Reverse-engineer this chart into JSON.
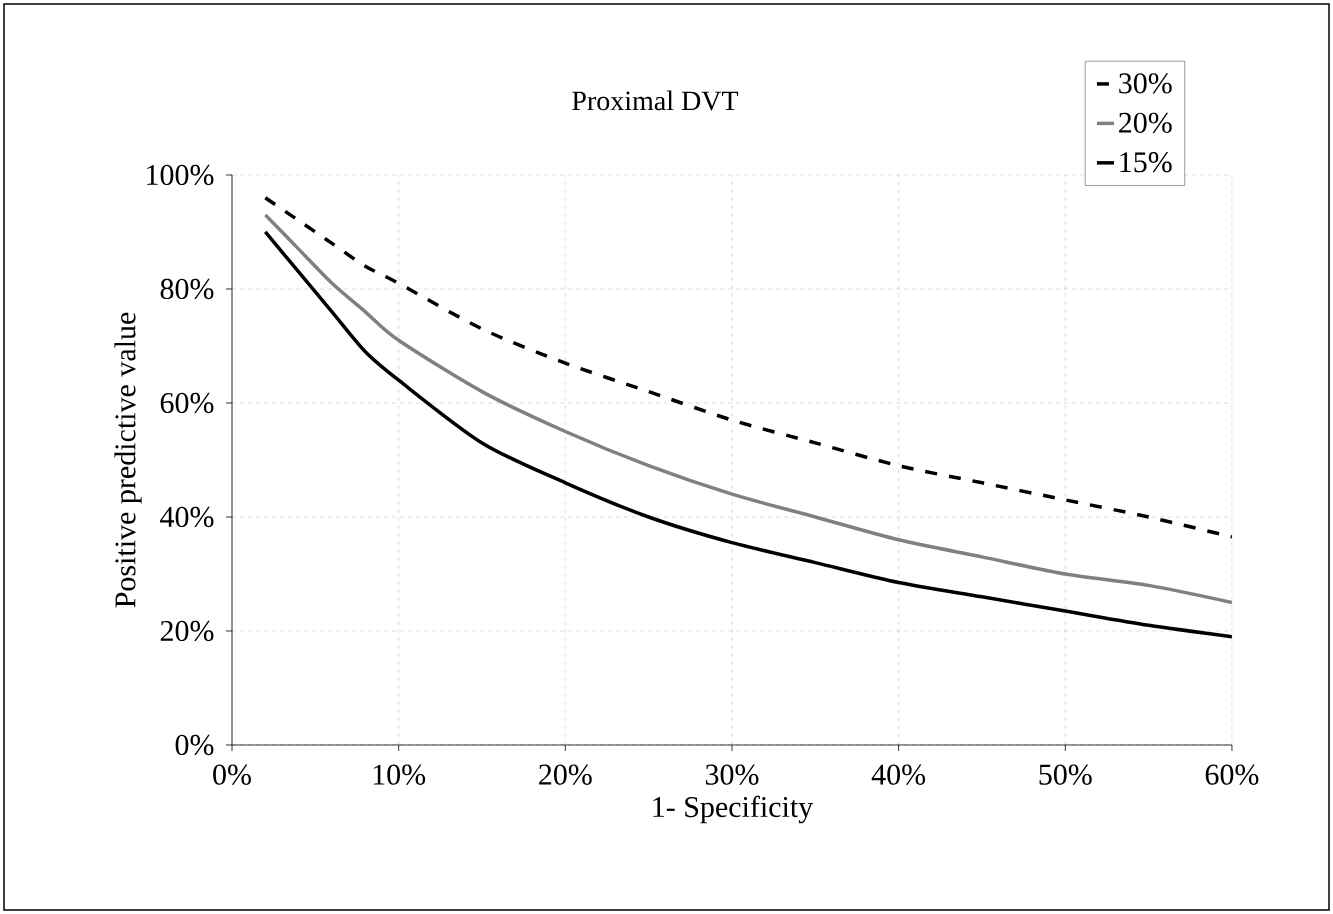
{
  "chart_data": {
    "type": "line",
    "title": "Proximal DVT",
    "xlabel": "1- Specificity",
    "ylabel": "Positive predictive value",
    "x": [
      2,
      4,
      6,
      8,
      10,
      15,
      20,
      25,
      30,
      35,
      40,
      45,
      50,
      55,
      60
    ],
    "series": [
      {
        "name": "30%",
        "color": "#000000",
        "line_style": "dashed",
        "values": [
          96,
          92,
          88,
          84,
          81,
          73,
          67,
          62,
          57,
          53,
          49,
          46,
          43,
          40,
          36.5
        ]
      },
      {
        "name": "20%",
        "color": "#808080",
        "line_style": "solid",
        "values": [
          93,
          87,
          81,
          76,
          71,
          62,
          55,
          49,
          44,
          40,
          36,
          33,
          30,
          28,
          25
        ]
      },
      {
        "name": "15%",
        "color": "#000000",
        "line_style": "solid",
        "values": [
          90,
          83,
          76,
          69,
          64,
          53,
          46,
          40,
          35.5,
          32,
          28.5,
          26,
          23.5,
          21,
          19
        ]
      }
    ],
    "xlim": [
      0,
      60
    ],
    "ylim": [
      0,
      100
    ],
    "xticks": [
      {
        "value": 0,
        "label": "0%"
      },
      {
        "value": 10,
        "label": "10%"
      },
      {
        "value": 20,
        "label": "20%"
      },
      {
        "value": 30,
        "label": "30%"
      },
      {
        "value": 40,
        "label": "40%"
      },
      {
        "value": 50,
        "label": "50%"
      },
      {
        "value": 60,
        "label": "60%"
      }
    ],
    "yticks": [
      {
        "value": 0,
        "label": "0%"
      },
      {
        "value": 20,
        "label": "20%"
      },
      {
        "value": 40,
        "label": "40%"
      },
      {
        "value": 60,
        "label": "60%"
      },
      {
        "value": 80,
        "label": "80%"
      },
      {
        "value": 100,
        "label": "100%"
      }
    ],
    "grid": true,
    "legend": "top right",
    "marker": "none"
  }
}
